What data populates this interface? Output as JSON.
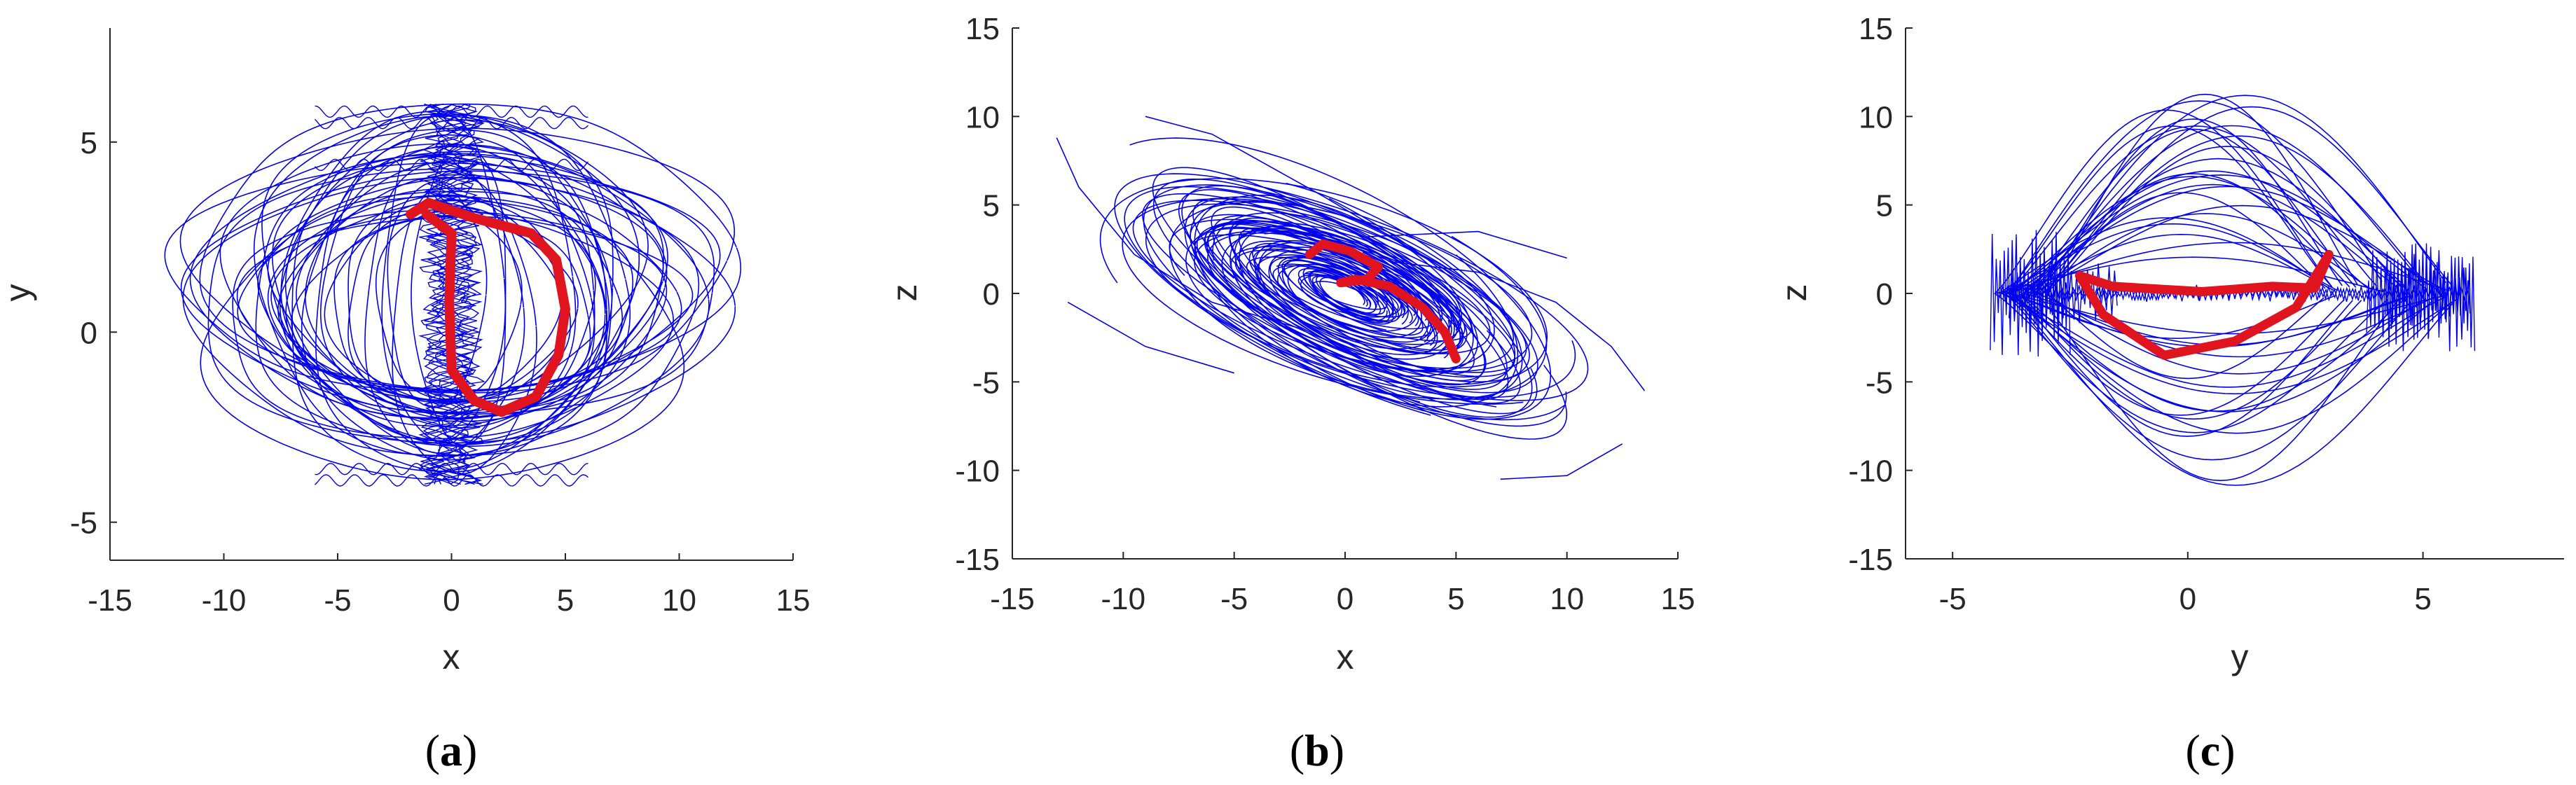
{
  "colors": {
    "attractor": "#0000ee",
    "highlight": "#e0141e",
    "axis": "#262626"
  },
  "chart_data": [
    {
      "type": "line",
      "panel": "a",
      "caption_letter": "a",
      "xlabel": "x",
      "ylabel": "y",
      "xlim": [
        -15,
        15
      ],
      "ylim": [
        -6,
        8
      ],
      "xticks": [
        -15,
        -10,
        -5,
        0,
        5,
        10,
        15
      ],
      "yticks": [
        -5,
        0,
        5
      ],
      "grid": false,
      "series": [
        {
          "color": "#0000ee",
          "style": "thin",
          "x": [
            0,
            10.8,
            13.0,
            11.5,
            6.0,
            0,
            -6.0,
            -11.5,
            -13.0,
            -10.8,
            0
          ],
          "y": [
            -3.9,
            -3.0,
            0,
            2.6,
            5.0,
            6.0,
            5.0,
            2.6,
            0,
            -3.0,
            -3.9
          ]
        },
        {
          "color": "#e0141e",
          "style": "thick",
          "x": [
            -1.8,
            -1.0,
            1.0,
            3.5,
            4.6,
            5.0,
            4.7,
            3.7,
            2.2,
            1.0,
            0.0,
            -0.1,
            0.0,
            -1.1
          ],
          "y": [
            3.1,
            3.4,
            3.0,
            2.6,
            1.9,
            0.6,
            -0.6,
            -1.7,
            -2.1,
            -1.8,
            -1.0,
            0.8,
            2.6,
            3.1
          ]
        }
      ]
    },
    {
      "type": "line",
      "panel": "b",
      "caption_letter": "b",
      "xlabel": "x",
      "ylabel": "z",
      "xlim": [
        -15,
        15
      ],
      "ylim": [
        -15,
        15
      ],
      "xticks": [
        -15,
        -10,
        -5,
        0,
        5,
        10,
        15
      ],
      "yticks": [
        -15,
        -10,
        -5,
        0,
        5,
        10,
        15
      ],
      "grid": false,
      "series": [
        {
          "color": "#0000ee",
          "style": "thin",
          "x": [
            -13.0,
            -12.0,
            -9.5,
            -5.0,
            0.0,
            5.0,
            9.5,
            12.5,
            13.5,
            12.5,
            8.0,
            3.0,
            -3.0,
            -9.0,
            -12.5
          ],
          "y": [
            8.8,
            6.0,
            2.0,
            -2.0,
            -5.0,
            -8.0,
            -10.5,
            -8.5,
            -5.5,
            -2.0,
            1.5,
            2.0,
            1.0,
            -1.5,
            -5.0
          ]
        },
        {
          "color": "#e0141e",
          "style": "thick",
          "x": [
            -1.6,
            -1.0,
            0.2,
            1.5,
            1.0,
            -0.2,
            0.5,
            2.0,
            3.5,
            4.5,
            5.0
          ],
          "y": [
            2.2,
            2.8,
            2.4,
            1.5,
            0.8,
            0.6,
            0.8,
            0.4,
            -0.8,
            -2.2,
            -3.7
          ]
        }
      ]
    },
    {
      "type": "line",
      "panel": "c",
      "caption_letter": "c",
      "xlabel": "y",
      "ylabel": "z",
      "xlim": [
        -6,
        8
      ],
      "ylim": [
        -15,
        15
      ],
      "xticks": [
        -5,
        0,
        5
      ],
      "yticks": [
        -15,
        -10,
        -5,
        0,
        5,
        10,
        15
      ],
      "grid": false,
      "series": [
        {
          "color": "#0000ee",
          "style": "thin",
          "x": [
            -4.0,
            -3.0,
            -1.0,
            1.0,
            3.0,
            5.0,
            6.0,
            5.0,
            3.0,
            1.0,
            -1.0,
            -3.0,
            -4.0
          ],
          "y": [
            0.0,
            4.0,
            8.5,
            10.5,
            11.0,
            6.0,
            0.0,
            -6.0,
            -10.0,
            -11.0,
            -9.5,
            -5.0,
            0.0
          ]
        },
        {
          "color": "#e0141e",
          "style": "thick",
          "x": [
            -2.3,
            -1.6,
            0.3,
            1.8,
            2.7,
            3.0,
            2.3,
            1.0,
            -0.5,
            -1.8,
            -2.3
          ],
          "y": [
            1.0,
            0.4,
            0.1,
            0.4,
            0.3,
            2.2,
            -0.8,
            -2.7,
            -3.5,
            -1.2,
            1.0
          ]
        }
      ]
    }
  ]
}
